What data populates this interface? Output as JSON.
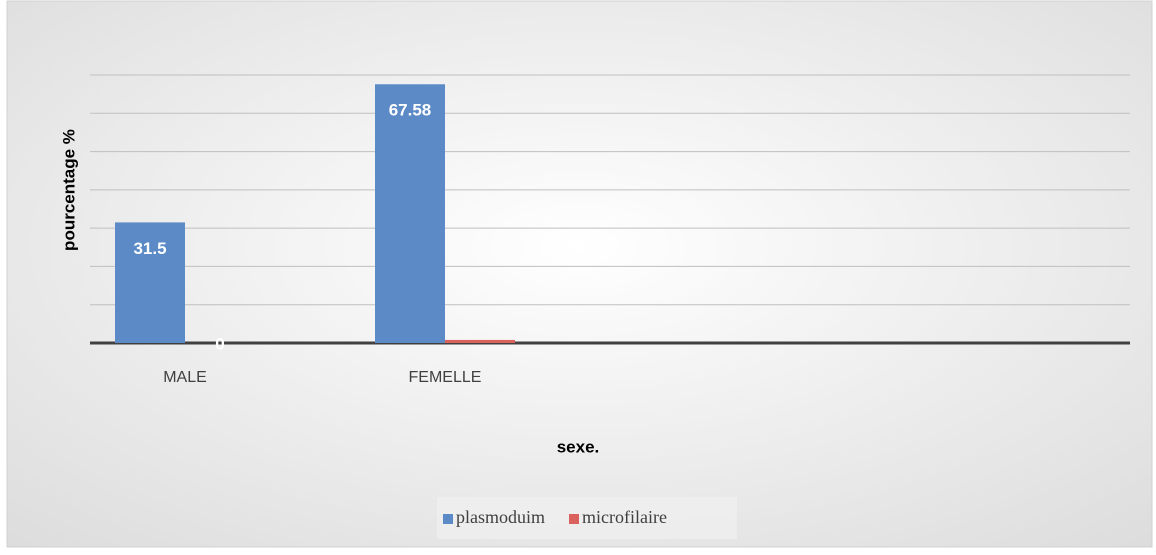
{
  "chart_data": {
    "type": "bar",
    "x_label": "sexe.",
    "y_label": "pourcentage %",
    "categories": [
      "MALE",
      "FEMELLE",
      null,
      null
    ],
    "series": [
      {
        "name": "plasmoduim",
        "color": "#5b8ac6",
        "values": [
          31.5,
          67.58,
          null,
          null
        ],
        "value_labels": [
          "31.5",
          "67.58",
          null,
          null
        ]
      },
      {
        "name": "microfilaire",
        "color": "#d9625d",
        "values": [
          0,
          0.8,
          null,
          null
        ],
        "value_labels": [
          "0",
          null,
          null,
          null
        ]
      }
    ],
    "ylim": [
      0,
      70
    ],
    "yticks": [
      0,
      10,
      20,
      30,
      40,
      50,
      60,
      70
    ],
    "grid": true,
    "legend": "bottom"
  }
}
